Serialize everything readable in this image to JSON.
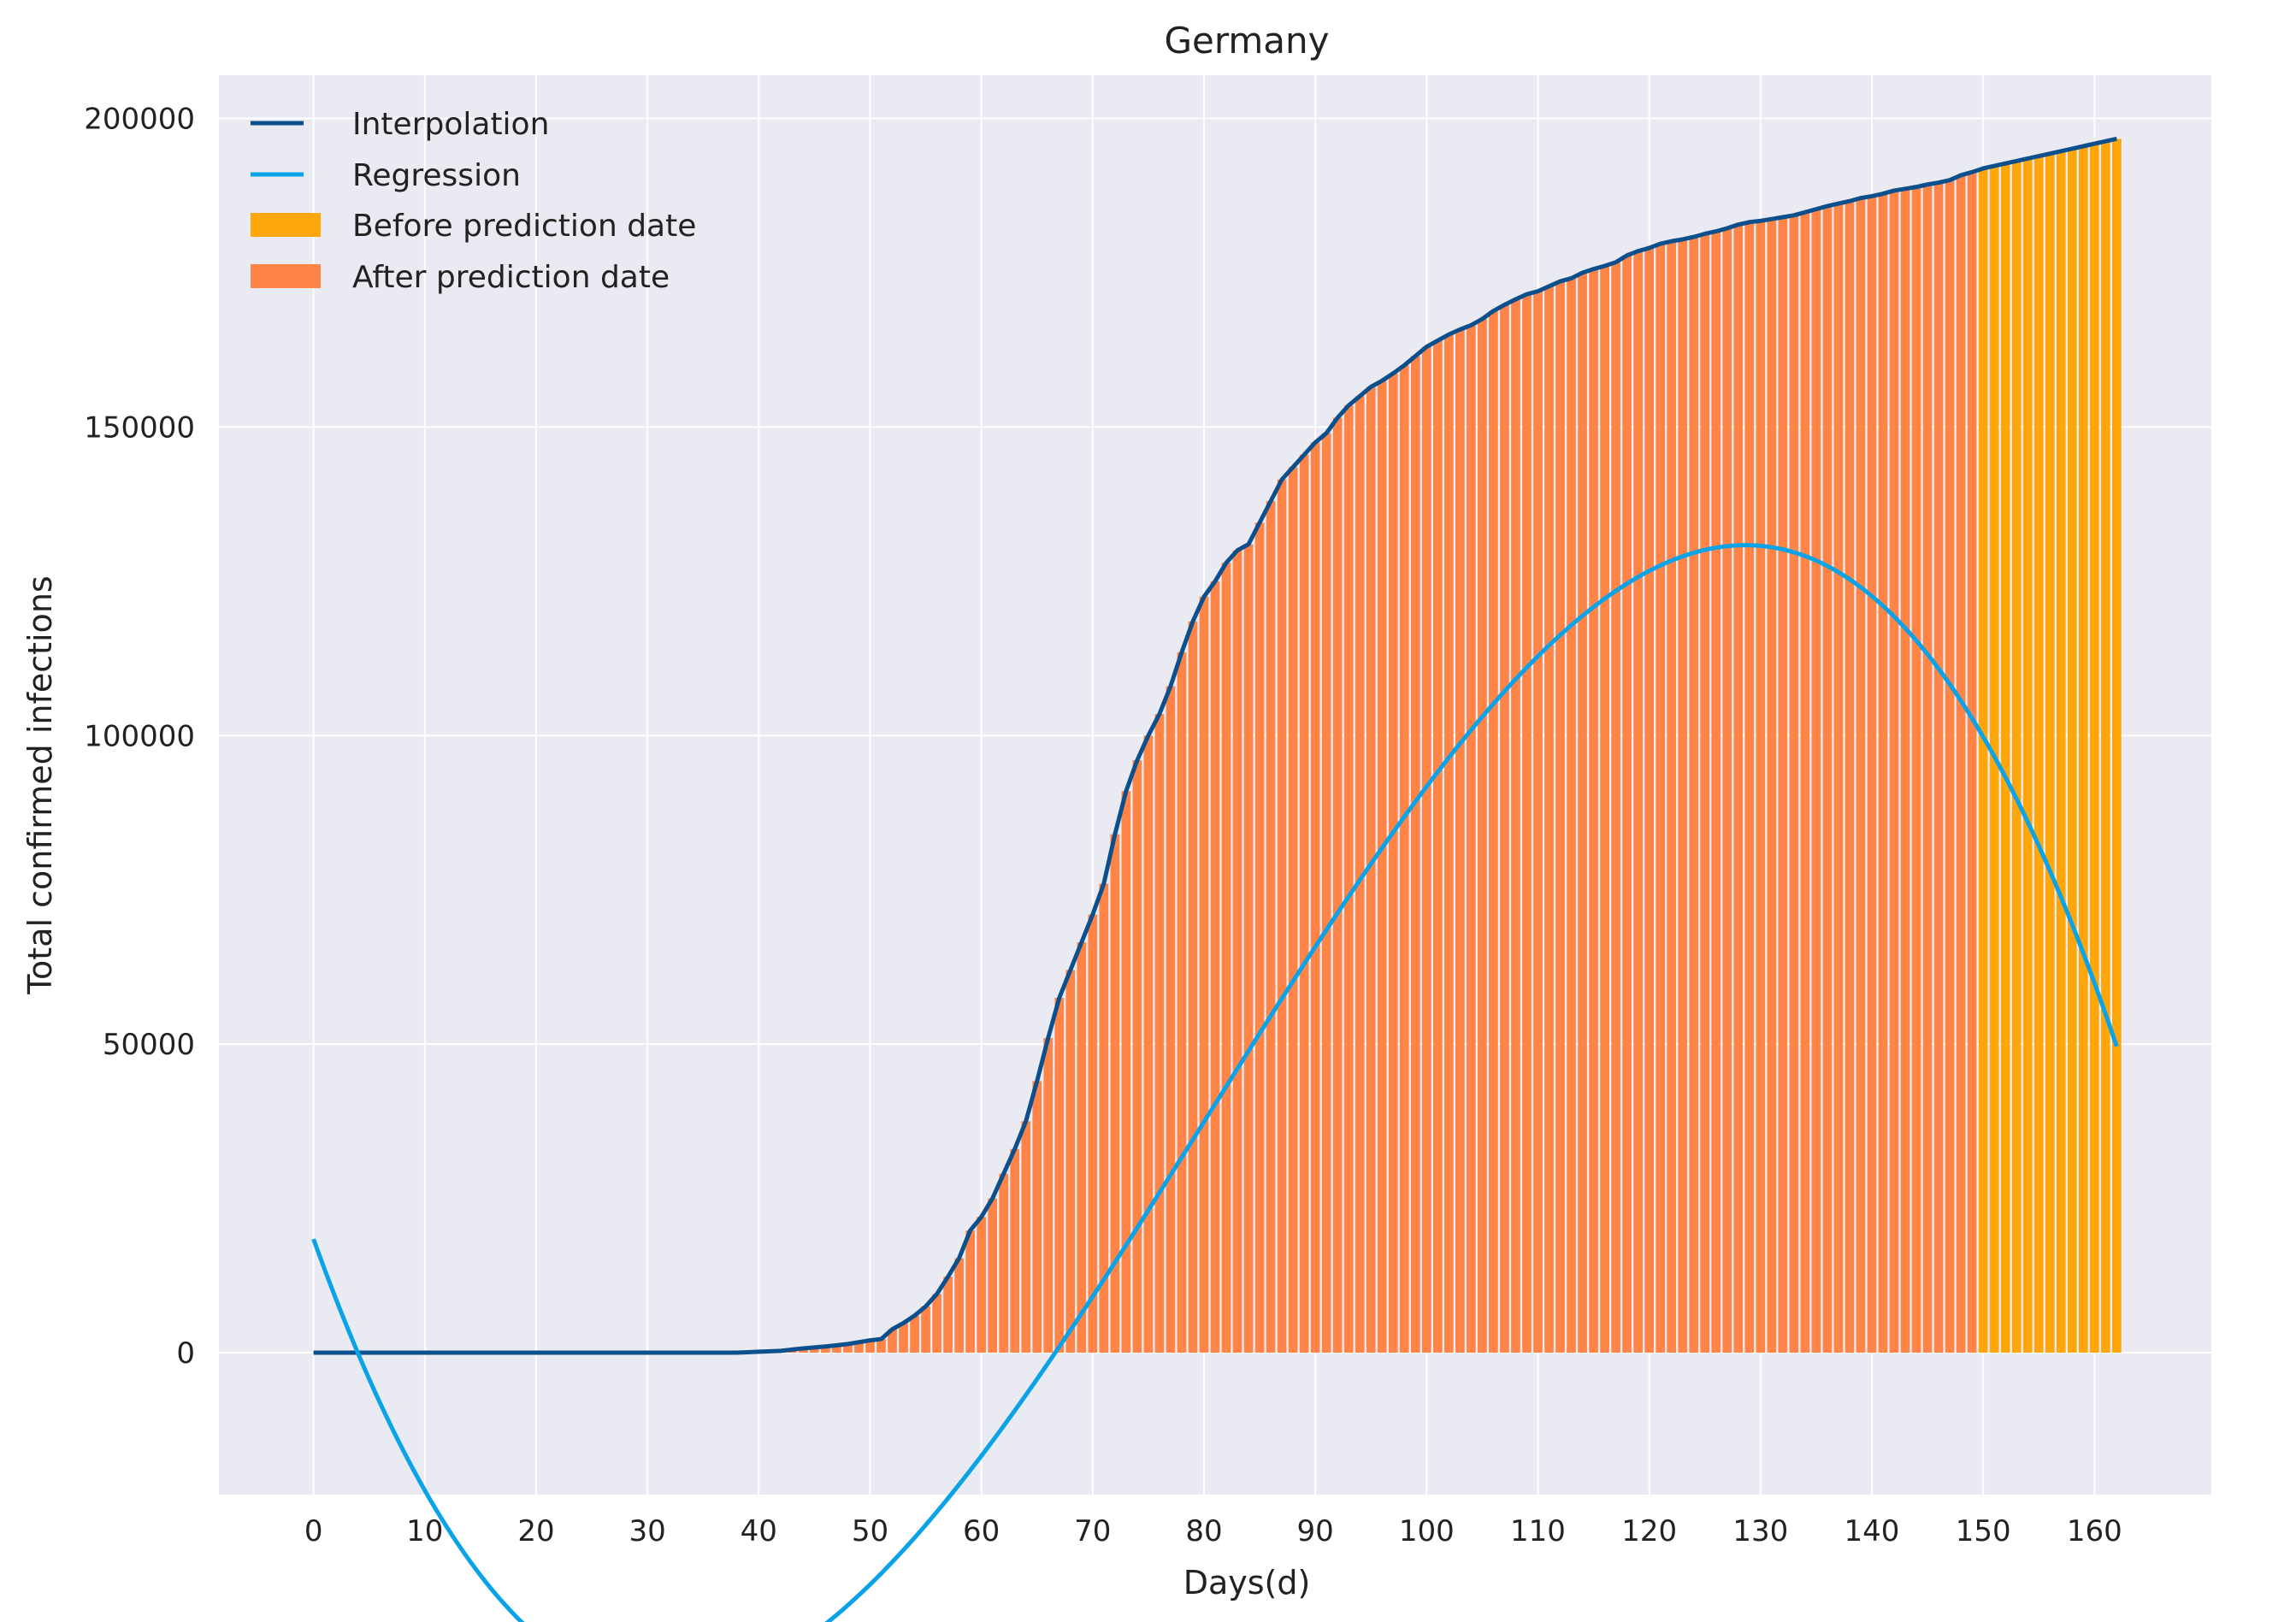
{
  "chart_data": {
    "type": "bar",
    "title": "Germany",
    "xlabel": "Days(d)",
    "ylabel": "Total confirmed infections",
    "xlim": [
      -8.5,
      170.5
    ],
    "ylim": [
      -23000,
      207000
    ],
    "xticks": [
      "0",
      "10",
      "20",
      "30",
      "40",
      "50",
      "60",
      "70",
      "80",
      "90",
      "100",
      "110",
      "120",
      "130",
      "140",
      "150",
      "160"
    ],
    "yticks": [
      "0",
      "50000",
      "100000",
      "150000",
      "200000"
    ],
    "grid": true,
    "legend_position": "top-left",
    "prediction_split_day": 150,
    "legend": {
      "interpolation": "Interpolation",
      "regression": "Regression",
      "before": "Before prediction date",
      "after": "After prediction date"
    },
    "colors": {
      "background": "#eaeaf2",
      "grid": "#ffffff",
      "interpolation": "#0b4f8c",
      "regression": "#0aa3e8",
      "before": "#ffa60a",
      "after": "#ff8446"
    },
    "series": [
      {
        "name": "Interpolation",
        "kind": "line",
        "x": [
          0,
          38,
          42,
          44,
          46,
          48,
          50,
          51,
          52,
          53,
          54,
          55,
          56,
          57,
          58,
          59,
          60,
          61,
          62,
          63,
          64,
          65,
          66,
          67,
          68,
          69,
          70,
          71,
          72,
          73,
          74,
          75,
          76,
          77,
          78,
          79,
          80,
          81,
          82,
          83,
          84,
          85,
          86,
          87,
          88,
          89,
          90,
          91,
          92,
          93,
          94,
          95,
          96,
          97,
          98,
          99,
          100,
          101,
          102,
          103,
          104,
          105,
          106,
          107,
          108,
          109,
          110,
          111,
          112,
          113,
          114,
          115,
          116,
          117,
          118,
          119,
          120,
          121,
          122,
          123,
          124,
          125,
          126,
          127,
          128,
          129,
          130,
          131,
          132,
          133,
          134,
          135,
          136,
          137,
          138,
          139,
          140,
          141,
          142,
          143,
          144,
          145,
          146,
          147,
          148,
          149,
          150,
          152,
          154,
          156,
          158,
          160,
          162
        ],
        "values": [
          0,
          0,
          300,
          700,
          1000,
          1400,
          2000,
          2200,
          3800,
          4800,
          6000,
          7500,
          9500,
          12300,
          15300,
          19800,
          22000,
          25000,
          29000,
          33000,
          37500,
          44000,
          51000,
          57500,
          62000,
          66500,
          71000,
          76000,
          84000,
          91000,
          96000,
          100000,
          103500,
          108000,
          113500,
          118500,
          122500,
          125000,
          128000,
          130000,
          131000,
          134500,
          138000,
          141500,
          143500,
          145500,
          147500,
          149000,
          151500,
          153500,
          155000,
          156500,
          157500,
          158700,
          160000,
          161500,
          163000,
          164000,
          165000,
          165800,
          166500,
          167500,
          168800,
          169800,
          170700,
          171500,
          172000,
          172800,
          173600,
          174100,
          175000,
          175600,
          176100,
          176700,
          177800,
          178500,
          179000,
          179700,
          180100,
          180400,
          180800,
          181300,
          181700,
          182200,
          182800,
          183200,
          183400,
          183700,
          184000,
          184300,
          184800,
          185300,
          185800,
          186200,
          186600,
          187100,
          187400,
          187800,
          188300,
          188600,
          188900,
          189300,
          189600,
          190000,
          190800,
          191300,
          191900,
          192700,
          193500,
          194300,
          195100,
          195900,
          196700
        ]
      },
      {
        "name": "Regression",
        "kind": "cubic",
        "coefficients": [
          -0.4087,
          98.36,
          -5015.6,
          18400
        ],
        "x_range": [
          0,
          162
        ]
      }
    ]
  }
}
